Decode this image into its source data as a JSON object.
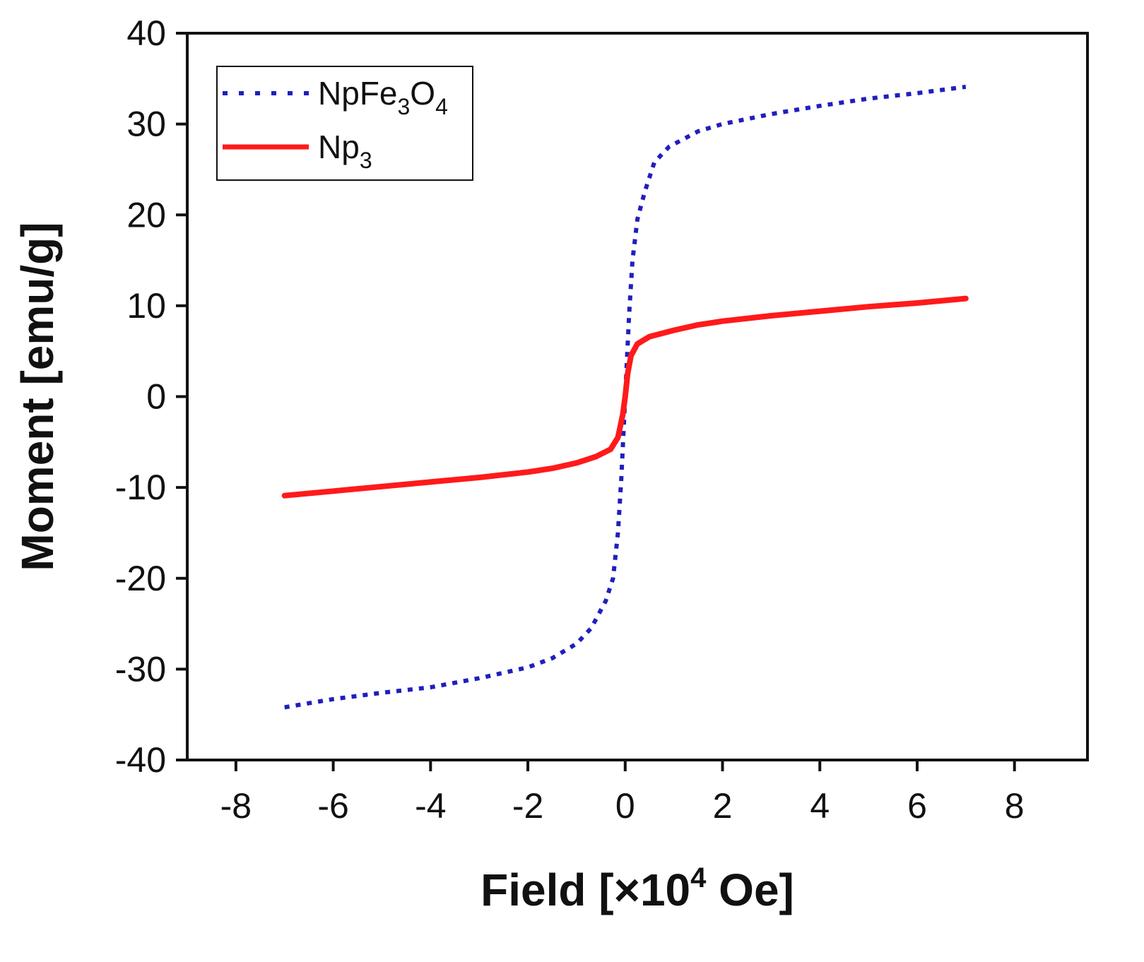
{
  "chart_data": {
    "type": "line",
    "xlabel": {
      "prefix": "Field [×10",
      "sup": "4",
      "suffix": " Oe]"
    },
    "ylabel": "Moment [emu/g]",
    "xlim": [
      -9,
      9.5
    ],
    "ylim": [
      -40,
      40
    ],
    "xticks": [
      -8,
      -6,
      -4,
      -2,
      0,
      2,
      4,
      6,
      8
    ],
    "yticks": [
      -40,
      -30,
      -20,
      -10,
      0,
      10,
      20,
      30,
      40
    ],
    "grid": false,
    "legend_position": "top-left",
    "series": [
      {
        "name": {
          "parts": [
            [
              "Np",
              ""
            ],
            [
              "Fe",
              ""
            ],
            [
              "3",
              "sub"
            ],
            [
              "O",
              ""
            ],
            [
              "4",
              "sub"
            ]
          ]
        },
        "style": "dotted",
        "color": "#1f1fbf",
        "points": [
          [
            -7,
            -34.2
          ],
          [
            -6,
            -33.3
          ],
          [
            -5,
            -32.6
          ],
          [
            -4,
            -32.0
          ],
          [
            -3,
            -31.0
          ],
          [
            -2,
            -29.8
          ],
          [
            -1.5,
            -28.8
          ],
          [
            -1,
            -27.2
          ],
          [
            -0.7,
            -25.5
          ],
          [
            -0.4,
            -22.5
          ],
          [
            -0.25,
            -20.0
          ],
          [
            -0.15,
            -15.0
          ],
          [
            -0.08,
            -9.0
          ],
          [
            0,
            0.0
          ],
          [
            0.08,
            9.0
          ],
          [
            0.15,
            15.0
          ],
          [
            0.25,
            19.5
          ],
          [
            0.4,
            22.5
          ],
          [
            0.6,
            25.8
          ],
          [
            0.9,
            27.5
          ],
          [
            1.5,
            29.2
          ],
          [
            2,
            30.0
          ],
          [
            3,
            31.1
          ],
          [
            4,
            32.0
          ],
          [
            5,
            32.8
          ],
          [
            6,
            33.4
          ],
          [
            7,
            34.1
          ]
        ]
      },
      {
        "name": {
          "parts": [
            [
              "Np",
              ""
            ],
            [
              "3",
              "sub"
            ]
          ]
        },
        "style": "solid",
        "color": "#ff1a1a",
        "points": [
          [
            -7,
            -10.9
          ],
          [
            -6,
            -10.4
          ],
          [
            -5,
            -9.9
          ],
          [
            -4,
            -9.4
          ],
          [
            -3,
            -8.9
          ],
          [
            -2,
            -8.3
          ],
          [
            -1.5,
            -7.9
          ],
          [
            -1,
            -7.3
          ],
          [
            -0.6,
            -6.6
          ],
          [
            -0.3,
            -5.8
          ],
          [
            -0.15,
            -4.5
          ],
          [
            -0.05,
            -2.0
          ],
          [
            0,
            0.0
          ],
          [
            0.05,
            2.5
          ],
          [
            0.12,
            4.5
          ],
          [
            0.25,
            5.8
          ],
          [
            0.5,
            6.6
          ],
          [
            1,
            7.3
          ],
          [
            1.5,
            7.9
          ],
          [
            2,
            8.3
          ],
          [
            3,
            8.9
          ],
          [
            4,
            9.4
          ],
          [
            5,
            9.9
          ],
          [
            6,
            10.3
          ],
          [
            7,
            10.8
          ]
        ]
      }
    ]
  }
}
